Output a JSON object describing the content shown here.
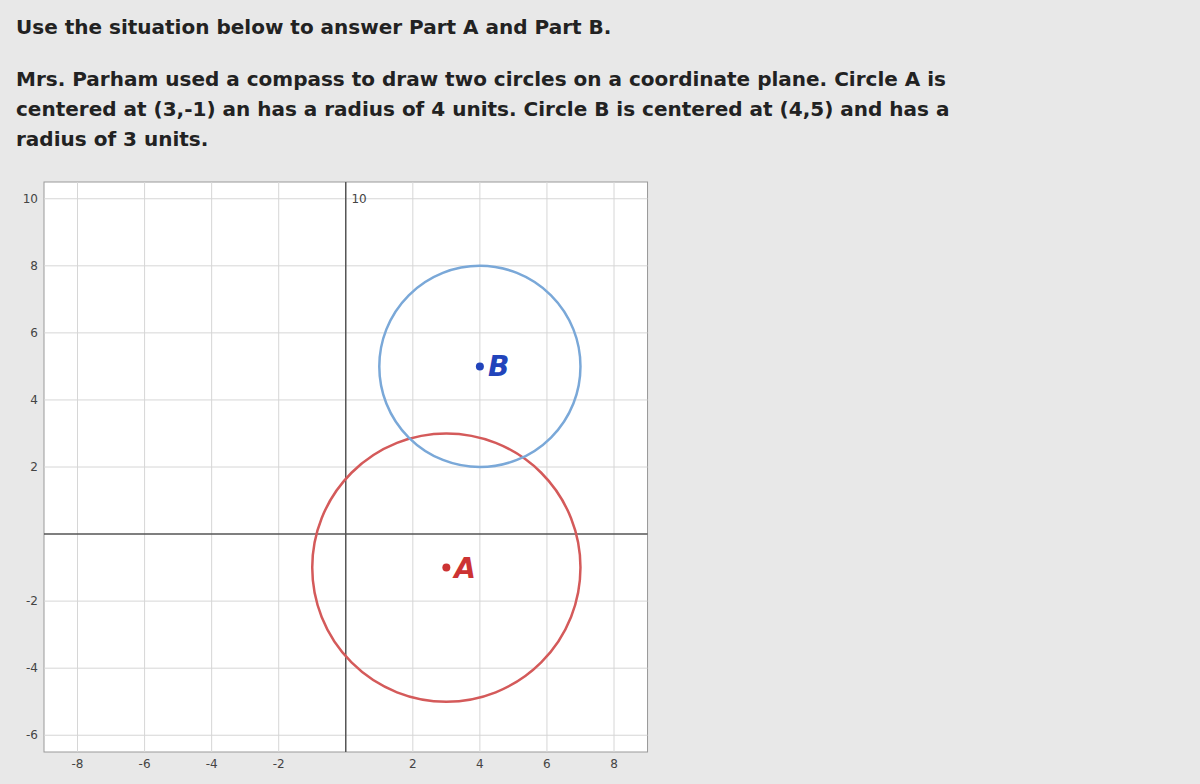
{
  "chart_data": {
    "type": "circles",
    "title": "Use the situation below to answer Part A and Part B.",
    "subtitle": "Mrs. Parham used a compass to draw two circles on a coordinate plane.  Circle A is\ncentered at (3,-1) an has a radius of 4 units.  Circle B is centered at (4,5) and has a\nradius of 3 units.",
    "series": [
      {
        "name": "A",
        "x": 3,
        "y": -1,
        "radius": 4,
        "color": "#d45a5a",
        "label_color": "#cc3333"
      },
      {
        "name": "B",
        "x": 4,
        "y": 5,
        "radius": 3,
        "color": "#7aa8d8",
        "label_color": "#2244bb"
      }
    ],
    "xlim": [
      -9,
      9
    ],
    "ylim": [
      -6.5,
      10.5
    ],
    "xticks": [
      -8,
      -6,
      -4,
      -2,
      2,
      4,
      6,
      8
    ],
    "yticks": [
      -6,
      -4,
      -2,
      2,
      4,
      6,
      8,
      10
    ],
    "annotations": [
      {
        "text": "10",
        "x": 0.08,
        "y": 10
      }
    ],
    "grid": true
  }
}
